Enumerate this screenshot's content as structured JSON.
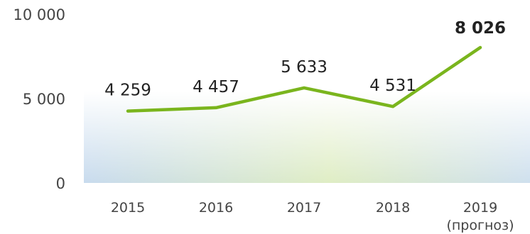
{
  "chart_data": {
    "type": "line",
    "title": "",
    "xlabel": "",
    "ylabel": "",
    "categories": [
      "2015",
      "2016",
      "2017",
      "2018",
      "2019"
    ],
    "category_notes": [
      "",
      "",
      "",
      "",
      "(прогноз)"
    ],
    "series": [
      {
        "values": [
          4259,
          4457,
          5633,
          4531,
          8026
        ],
        "value_labels": [
          "4 259",
          "4 457",
          "5 633",
          "4 531",
          "8 026"
        ],
        "highlight_index": 4,
        "color": "#7ab51d"
      }
    ],
    "yticks": [
      0,
      5000,
      10000
    ],
    "ytick_labels": [
      "0",
      "5 000",
      "10 000"
    ],
    "ylim": [
      0,
      10000
    ],
    "grid": false,
    "legend": "none",
    "background_gradient": [
      "#c8dbee",
      "#dfedc4",
      "#cfe0ee"
    ]
  }
}
